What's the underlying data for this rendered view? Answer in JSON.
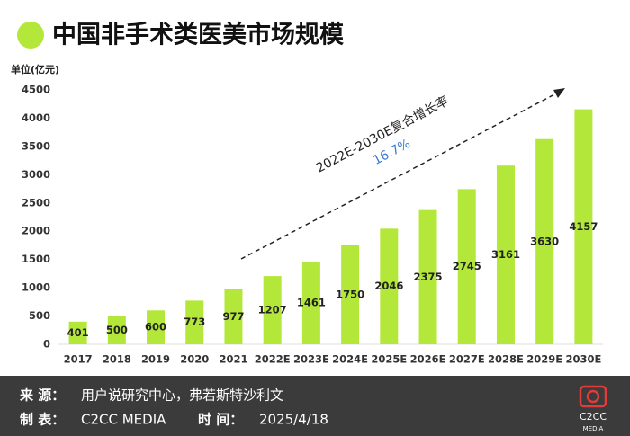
{
  "chart_data": {
    "type": "bar",
    "title": "中国非手术类医美市场规模",
    "unit": "单位(亿元)",
    "categories": [
      "2017",
      "2018",
      "2019",
      "2020",
      "2021",
      "2022E",
      "2023E",
      "2024E",
      "2025E",
      "2026E",
      "2027E",
      "2028E",
      "2029E",
      "2030E"
    ],
    "values": [
      401,
      500,
      600,
      773,
      977,
      1207,
      1461,
      1750,
      2046,
      2375,
      2745,
      3161,
      3630,
      4157
    ],
    "color": "#b3e83a",
    "ylim": [
      0,
      4500
    ],
    "yticks": [
      0,
      500,
      1000,
      1500,
      2000,
      2500,
      3000,
      3500,
      4000,
      4500
    ],
    "grid": false,
    "annotation": {
      "label": "2022E-2030E复合增长率",
      "value": "16.7%"
    }
  },
  "footer": {
    "source_label": "来  源：",
    "source": "用户说研究中心，弗若斯特沙利文",
    "maker_label": "制  表：",
    "maker": "C2CC  MEDIA",
    "time_label": "时  间：",
    "time": "2025/4/18",
    "logo_top": "C2CC",
    "logo_bottom": "MEDIA"
  }
}
